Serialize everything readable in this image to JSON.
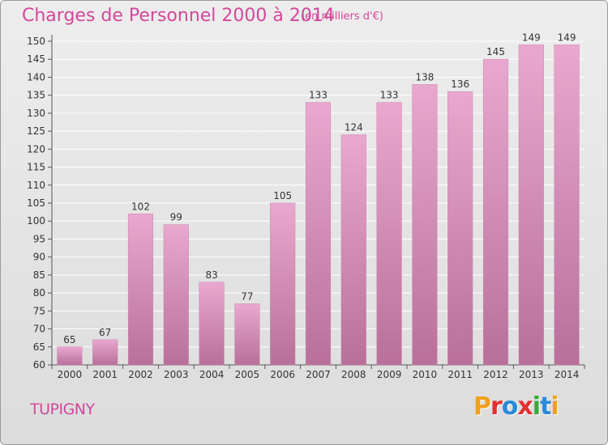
{
  "header": {
    "title": "Charges de Personnel 2000 à 2014",
    "subtitle": "(en milliers d'€)"
  },
  "footer": {
    "commune": "TUPIGNY",
    "logo": "Proxiti",
    "logo_colors": [
      "#f0a020",
      "#e03030",
      "#2a8ad8",
      "#e03030",
      "#3aa83a",
      "#2a8ad8",
      "#f0a020"
    ]
  },
  "colors": {
    "accent": "#d2489a",
    "bar_top": "#e9a8cf",
    "bar_bottom": "#b8709a",
    "grid": "#ffffff"
  },
  "chart_data": {
    "type": "bar",
    "categories": [
      "2000",
      "2001",
      "2002",
      "2003",
      "2004",
      "2005",
      "2006",
      "2007",
      "2008",
      "2009",
      "2010",
      "2011",
      "2012",
      "2013",
      "2014"
    ],
    "values": [
      65,
      67,
      102,
      99,
      83,
      77,
      105,
      133,
      124,
      133,
      138,
      136,
      145,
      149,
      149
    ],
    "data_labels": [
      "65",
      "67",
      "102",
      "99",
      "83",
      "77",
      "105",
      "133",
      "124",
      "133",
      "138",
      "136",
      "145",
      "149",
      "149"
    ],
    "yticks": [
      "60",
      "65",
      "70",
      "75",
      "80",
      "85",
      "90",
      "95",
      "100",
      "105",
      "110",
      "115",
      "120",
      "125",
      "130",
      "135",
      "140",
      "145",
      "150"
    ],
    "ylim": [
      60,
      150
    ],
    "grid": true,
    "title": "Charges de Personnel 2000 à 2014",
    "xlabel": "",
    "ylabel": ""
  }
}
